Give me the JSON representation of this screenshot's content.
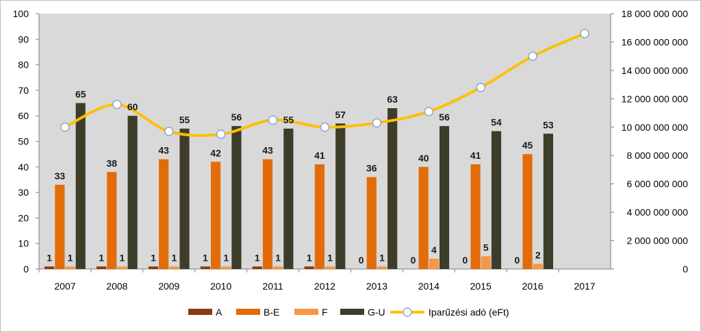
{
  "chart_data": {
    "type": "bar",
    "categories": [
      "2007",
      "2008",
      "2009",
      "2010",
      "2011",
      "2012",
      "2013",
      "2014",
      "2015",
      "2016",
      "2017"
    ],
    "series": [
      {
        "name": "A",
        "kind": "bar",
        "axis": "left",
        "color": "#8b3a0f",
        "values": [
          1,
          1,
          1,
          1,
          1,
          1,
          0,
          0,
          0,
          0,
          null
        ]
      },
      {
        "name": "B-E",
        "kind": "bar",
        "axis": "left",
        "color": "#e36c0a",
        "values": [
          33,
          38,
          43,
          42,
          43,
          41,
          36,
          40,
          41,
          45,
          null
        ]
      },
      {
        "name": "F",
        "kind": "bar",
        "axis": "left",
        "color": "#f79646",
        "values": [
          1,
          1,
          1,
          1,
          1,
          1,
          1,
          4,
          5,
          2,
          null
        ]
      },
      {
        "name": "G-U",
        "kind": "bar",
        "axis": "left",
        "color": "#3d3d29",
        "values": [
          65,
          60,
          55,
          56,
          55,
          57,
          63,
          56,
          54,
          53,
          null
        ]
      },
      {
        "name": "Iparűzési adó (eFt)",
        "kind": "line",
        "axis": "right",
        "color": "#ffc000",
        "values": [
          10000000000,
          11600000000,
          9700000000,
          9500000000,
          10500000000,
          10000000000,
          10300000000,
          11100000000,
          12800000000,
          15000000000,
          16600000000
        ]
      }
    ],
    "ylim": [
      0,
      100
    ],
    "y_ticks": [
      "0",
      "10",
      "20",
      "30",
      "40",
      "50",
      "60",
      "70",
      "80",
      "90",
      "100"
    ],
    "y2lim": [
      0,
      18000000000
    ],
    "y2_ticks": [
      "0",
      "2 000 000 000",
      "4 000 000 000",
      "6 000 000 000",
      "8 000 000 000",
      "10 000 000 000",
      "12 000 000 000",
      "14 000 000 000",
      "16 000 000 000",
      "18 000 000 000"
    ],
    "plot_background": "#d9d9d9",
    "legend_position": "bottom",
    "grid": false
  }
}
